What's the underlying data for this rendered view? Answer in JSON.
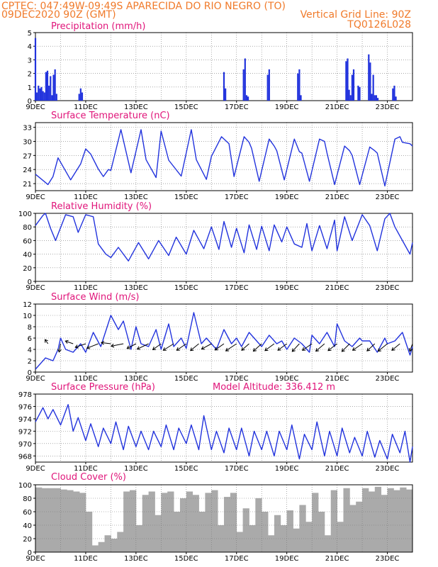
{
  "header": {
    "line1": "CPTEC:   047:49W-09:49S   APARECIDA DO RIO NEGRO (TO)",
    "line2_left": "09DEC2020 90Z (GMT)",
    "line2_right": "Vertical Grid Line: 90Z",
    "line3_right": "TQ0126L028"
  },
  "x_tick_labels": [
    "9DEC",
    "11DEC",
    "13DEC",
    "15DEC",
    "17DEC",
    "19DEC",
    "21DEC",
    "23DEC"
  ],
  "colors": {
    "line": "#2233dd",
    "title": "#e0157a",
    "header": "#f07a2a",
    "cloud": "#aaaaaa",
    "arrow": "#000000"
  },
  "chart_data": [
    {
      "type": "bar",
      "title": "Precipitation (mm/h)",
      "x_unit": "days since 9DEC",
      "ylim": [
        0,
        5
      ],
      "yticks": [
        0,
        1,
        2,
        3,
        4,
        5
      ],
      "x": [
        0.0,
        0.06,
        0.12,
        0.18,
        0.24,
        0.3,
        0.36,
        0.42,
        0.48,
        0.54,
        0.6,
        0.66,
        0.72,
        0.78,
        0.84,
        1.74,
        1.8,
        1.86,
        7.5,
        7.56,
        8.28,
        8.34,
        8.4,
        8.46,
        9.24,
        9.3,
        10.44,
        10.5,
        10.56,
        12.36,
        12.42,
        12.48,
        12.54,
        12.6,
        12.66,
        12.84,
        12.9,
        13.26,
        13.32,
        13.38,
        13.44,
        13.5,
        13.56,
        13.62,
        14.22,
        14.28,
        14.34
      ],
      "values": [
        4.6,
        0.6,
        1.1,
        0.9,
        1.0,
        0.7,
        0.6,
        2.1,
        2.2,
        1.1,
        1.8,
        0.4,
        1.9,
        2.3,
        0.5,
        0.5,
        0.9,
        0.6,
        2.1,
        0.9,
        2.3,
        3.1,
        0.4,
        0.3,
        1.9,
        2.3,
        2.0,
        2.3,
        0.4,
        2.9,
        3.1,
        0.8,
        0.4,
        1.9,
        2.3,
        1.1,
        1.0,
        3.4,
        2.8,
        0.5,
        1.9,
        0.4,
        0.4,
        0.2,
        0.9,
        1.1,
        0.3
      ]
    },
    {
      "type": "line",
      "title": "Surface Temperature (nC)",
      "x_unit": "days since 9DEC",
      "ylim": [
        19.5,
        34
      ],
      "yticks": [
        21,
        24,
        27,
        30,
        33
      ],
      "x": [
        0.0,
        0.5,
        0.7,
        0.9,
        1.4,
        1.8,
        2.0,
        2.2,
        2.5,
        2.7,
        2.9,
        3.0,
        3.4,
        3.8,
        4.2,
        4.4,
        4.8,
        5.0,
        5.3,
        5.8,
        6.2,
        6.4,
        6.8,
        7.0,
        7.4,
        7.7,
        7.9,
        8.3,
        8.5,
        8.6,
        8.9,
        9.3,
        9.5,
        9.6,
        9.9,
        10.3,
        10.5,
        10.6,
        10.9,
        11.3,
        11.5,
        11.6,
        11.9,
        12.3,
        12.5,
        12.6,
        12.9,
        13.3,
        13.5,
        13.6,
        13.9,
        14.3,
        14.5,
        14.6,
        14.9,
        15.0
      ],
      "values": [
        23.0,
        20.8,
        22.5,
        26.5,
        21.8,
        25.2,
        28.4,
        27.3,
        24.1,
        22.5,
        24.0,
        23.8,
        32.5,
        23.3,
        32.5,
        26.1,
        22.3,
        32.2,
        26.0,
        22.6,
        32.5,
        26.1,
        21.9,
        26.8,
        31.0,
        29.5,
        22.5,
        31.0,
        29.8,
        28.5,
        21.5,
        30.5,
        29.0,
        28.0,
        21.8,
        30.5,
        27.8,
        27.5,
        21.5,
        30.5,
        30.0,
        27.5,
        20.8,
        29.0,
        28.0,
        27.0,
        20.8,
        28.8,
        28.0,
        27.5,
        20.5,
        30.5,
        31.0,
        29.8,
        29.5,
        29.0
      ]
    },
    {
      "type": "line",
      "title": "Relative Humidity (%)",
      "x_unit": "days since 9DEC",
      "ylim": [
        0,
        100
      ],
      "yticks": [
        0,
        20,
        40,
        60,
        80,
        100
      ],
      "x": [
        0.0,
        0.3,
        0.4,
        0.6,
        0.8,
        1.2,
        1.5,
        1.7,
        2.0,
        2.3,
        2.5,
        2.8,
        3.0,
        3.3,
        3.7,
        4.1,
        4.5,
        4.9,
        5.3,
        5.6,
        6.0,
        6.3,
        6.7,
        7.0,
        7.3,
        7.5,
        7.8,
        8.0,
        8.3,
        8.5,
        8.8,
        9.0,
        9.3,
        9.5,
        9.8,
        10.0,
        10.3,
        10.6,
        10.8,
        11.0,
        11.3,
        11.6,
        11.9,
        12.0,
        12.3,
        12.6,
        13.0,
        13.3,
        13.6,
        13.9,
        14.1,
        14.3,
        14.6,
        14.9,
        15.0
      ],
      "values": [
        82,
        97,
        100,
        78,
        60,
        98,
        95,
        72,
        98,
        95,
        55,
        40,
        35,
        50,
        30,
        57,
        33,
        60,
        38,
        65,
        40,
        75,
        48,
        80,
        47,
        88,
        50,
        78,
        42,
        83,
        47,
        81,
        45,
        83,
        58,
        80,
        55,
        50,
        85,
        45,
        82,
        48,
        90,
        45,
        95,
        60,
        98,
        82,
        45,
        92,
        100,
        80,
        60,
        40,
        57
      ]
    },
    {
      "type": "line",
      "title": "Surface Wind (m/s)",
      "x_unit": "days since 9DEC",
      "ylim": [
        0,
        12
      ],
      "yticks": [
        0,
        2,
        4,
        6,
        8,
        10,
        12
      ],
      "x": [
        0.0,
        0.4,
        0.7,
        0.9,
        1.0,
        1.2,
        1.5,
        1.8,
        2.0,
        2.3,
        2.6,
        3.0,
        3.3,
        3.5,
        3.8,
        4.0,
        4.2,
        4.5,
        4.8,
        5.0,
        5.3,
        5.5,
        5.8,
        6.0,
        6.3,
        6.6,
        6.8,
        7.0,
        7.2,
        7.5,
        7.8,
        8.0,
        8.2,
        8.5,
        8.8,
        9.0,
        9.3,
        9.6,
        9.8,
        10.0,
        10.3,
        10.6,
        10.9,
        11.0,
        11.3,
        11.6,
        11.9,
        12.0,
        12.3,
        12.6,
        12.9,
        13.0,
        13.3,
        13.6,
        13.9,
        14.0,
        14.3,
        14.6,
        14.9,
        15.0
      ],
      "values": [
        0.5,
        2.5,
        2.0,
        4.0,
        6.0,
        4.0,
        3.5,
        5.0,
        3.5,
        7.0,
        4.5,
        10.0,
        7.5,
        9.0,
        4.0,
        8.0,
        5.0,
        4.5,
        7.5,
        4.0,
        8.5,
        4.5,
        6.0,
        4.2,
        10.5,
        5.0,
        6.0,
        5.0,
        4.0,
        7.5,
        5.0,
        6.0,
        4.5,
        7.0,
        5.5,
        4.5,
        6.5,
        5.0,
        5.5,
        4.0,
        6.0,
        5.0,
        3.5,
        6.5,
        5.0,
        7.0,
        4.5,
        8.5,
        5.5,
        4.5,
        6.0,
        5.5,
        5.5,
        3.5,
        6.0,
        5.0,
        5.5,
        7.0,
        3.0,
        4.5
      ],
      "arrows": {
        "x": [
          0.5,
          1.0,
          1.5,
          2.0,
          2.5,
          3.0,
          3.5,
          4.0,
          4.5,
          5.0,
          5.5,
          6.0,
          6.5,
          7.0,
          7.5,
          8.0,
          8.5,
          9.0,
          9.5,
          10.0,
          10.5,
          11.0,
          11.5,
          12.0,
          12.5,
          13.0,
          13.5,
          14.0,
          14.5,
          15.0
        ],
        "u": [
          -1.0,
          -0.5,
          -2.6,
          -3.5,
          -3.8,
          -3.2,
          -4.1,
          -3.0,
          -3.8,
          -2.8,
          -3.5,
          -3.2,
          -2.8,
          -3.3,
          -3.0,
          -3.6,
          -2.5,
          -2.8,
          -3.1,
          -3.0,
          -2.4,
          -3.2,
          -2.9,
          -3.0,
          -2.6,
          -3.2,
          -2.6,
          -3.1,
          -2.7,
          -0.9
        ],
        "v": [
          1.4,
          -2.8,
          0.9,
          -1.2,
          -1.5,
          0.4,
          -0.8,
          -1.6,
          -1.8,
          -2.0,
          -2.2,
          -2.2,
          -2.3,
          -1.8,
          -2.1,
          -2.4,
          -2.2,
          -2.5,
          -2.3,
          -2.2,
          -2.6,
          -2.2,
          -2.5,
          -2.3,
          -2.6,
          -2.2,
          -2.4,
          -2.5,
          -2.2,
          -2.5
        ]
      }
    },
    {
      "type": "line",
      "title": "Surface Pressure (hPa)",
      "annotation": "Model Altitude: 336.412 m",
      "x_unit": "days since 9DEC",
      "ylim": [
        967,
        978
      ],
      "yticks": [
        968,
        970,
        972,
        974,
        976,
        978
      ],
      "x": [
        0.0,
        0.3,
        0.5,
        0.7,
        1.0,
        1.3,
        1.5,
        1.7,
        2.0,
        2.2,
        2.5,
        2.7,
        3.0,
        3.2,
        3.5,
        3.7,
        4.0,
        4.2,
        4.5,
        4.7,
        5.0,
        5.2,
        5.5,
        5.7,
        6.0,
        6.2,
        6.5,
        6.7,
        7.0,
        7.2,
        7.5,
        7.7,
        8.0,
        8.2,
        8.5,
        8.7,
        9.0,
        9.2,
        9.5,
        9.7,
        10.0,
        10.2,
        10.5,
        10.7,
        11.0,
        11.2,
        11.5,
        11.7,
        12.0,
        12.2,
        12.5,
        12.7,
        13.0,
        13.2,
        13.5,
        13.7,
        14.0,
        14.2,
        14.5,
        14.7,
        14.9,
        15.0
      ],
      "values": [
        973.5,
        975.8,
        974.0,
        975.5,
        973.0,
        976.3,
        972.0,
        974.2,
        970.5,
        973.2,
        969.5,
        972.5,
        970.0,
        973.5,
        969.0,
        972.8,
        969.5,
        972.0,
        969.0,
        972.0,
        969.5,
        973.0,
        969.0,
        972.5,
        970.0,
        973.0,
        969.0,
        974.5,
        969.0,
        972.0,
        968.5,
        972.5,
        969.0,
        972.5,
        968.0,
        972.0,
        969.0,
        972.0,
        968.0,
        972.0,
        969.0,
        973.0,
        967.5,
        971.5,
        969.0,
        973.5,
        968.0,
        972.0,
        968.0,
        972.5,
        968.5,
        971.0,
        968.0,
        972.0,
        967.8,
        970.5,
        967.5,
        971.5,
        968.5,
        972.0,
        967.0,
        969.5
      ]
    },
    {
      "type": "bar",
      "title": "Cloud Cover (%)",
      "x_unit": "days since 9DEC",
      "ylim": [
        0,
        100
      ],
      "yticks": [
        0,
        20,
        40,
        60,
        80,
        100
      ],
      "x": [
        0.0,
        0.25,
        0.5,
        0.75,
        1.0,
        1.25,
        1.5,
        1.75,
        2.0,
        2.25,
        2.5,
        2.75,
        3.0,
        3.25,
        3.5,
        3.75,
        4.0,
        4.25,
        4.5,
        4.75,
        5.0,
        5.25,
        5.5,
        5.75,
        6.0,
        6.25,
        6.5,
        6.75,
        7.0,
        7.25,
        7.5,
        7.75,
        8.0,
        8.25,
        8.5,
        8.75,
        9.0,
        9.25,
        9.5,
        9.75,
        10.0,
        10.25,
        10.5,
        10.75,
        11.0,
        11.25,
        11.5,
        11.75,
        12.0,
        12.25,
        12.5,
        12.75,
        13.0,
        13.25,
        13.5,
        13.75,
        14.0,
        14.25,
        14.5,
        14.75
      ],
      "values": [
        96,
        95,
        95,
        95,
        93,
        92,
        90,
        88,
        60,
        10,
        15,
        25,
        20,
        30,
        90,
        92,
        40,
        85,
        90,
        55,
        88,
        90,
        60,
        80,
        90,
        85,
        60,
        88,
        92,
        40,
        82,
        88,
        30,
        65,
        40,
        80,
        60,
        25,
        55,
        40,
        62,
        35,
        70,
        45,
        88,
        60,
        25,
        92,
        45,
        95,
        70,
        75,
        95,
        90,
        97,
        85,
        95,
        92,
        96,
        93
      ],
      "bar_width": 0.25
    }
  ]
}
